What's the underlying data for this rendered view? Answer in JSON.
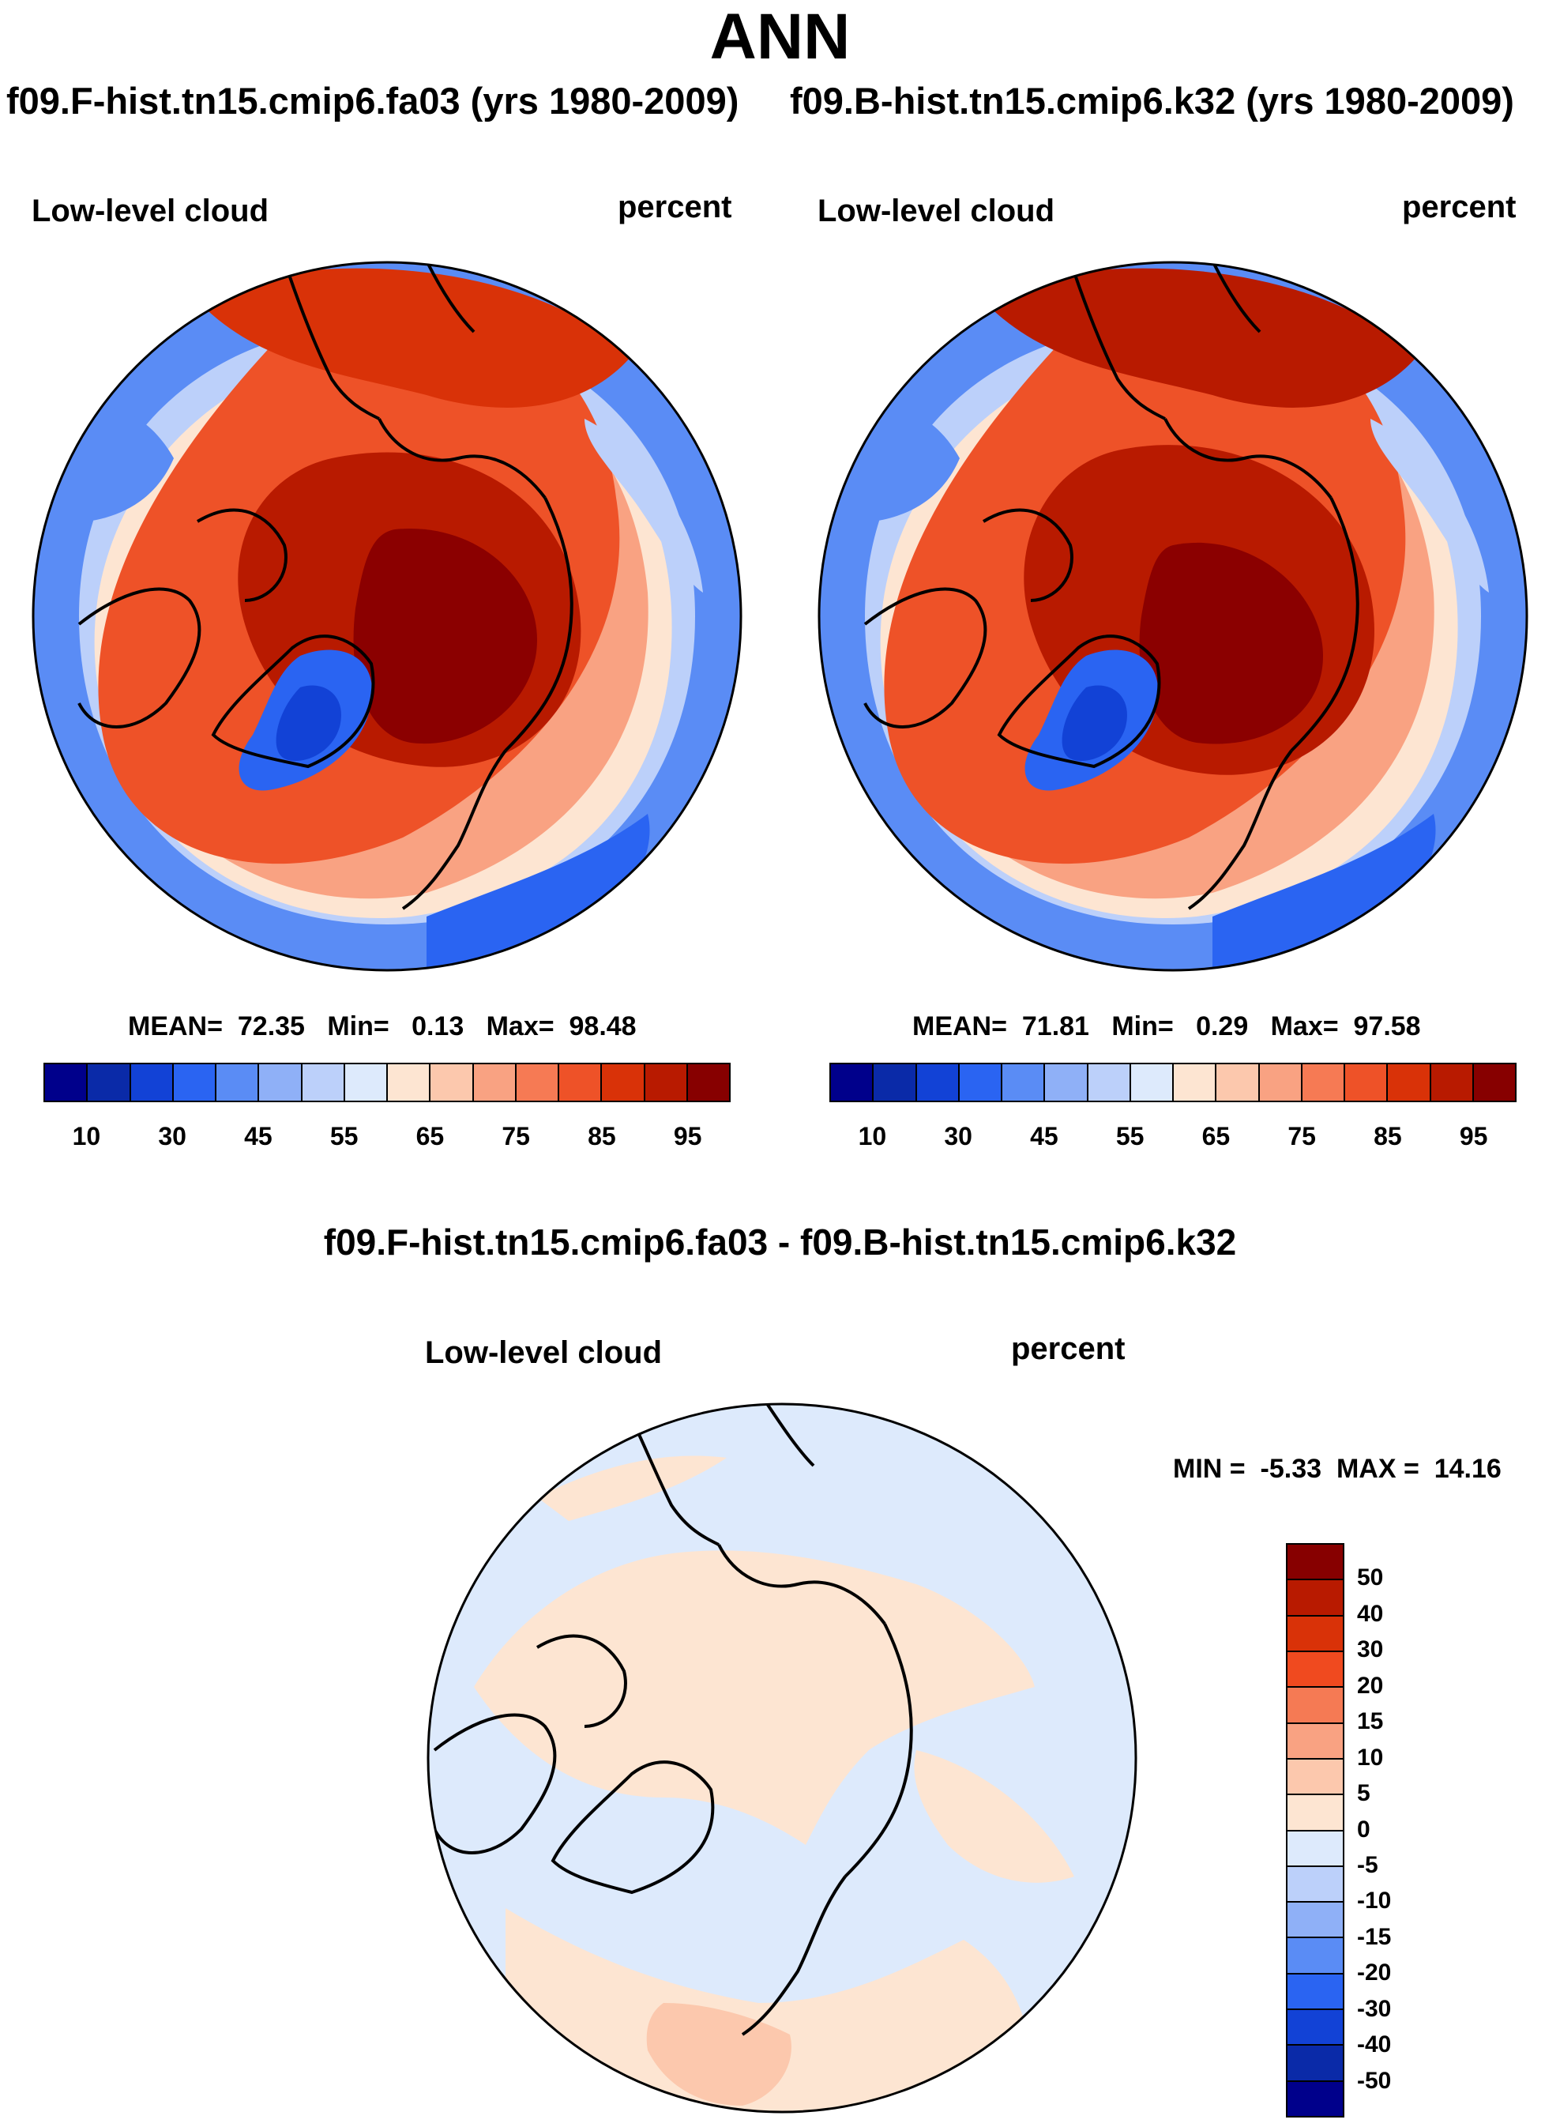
{
  "header": {
    "season": "ANN",
    "case1_label": "f09.F-hist.tn15.cmip6.fa03 (yrs 1980-2009)",
    "case2_label": "f09.B-hist.tn15.cmip6.k32 (yrs 1980-2009)"
  },
  "panel1": {
    "variable": "Low-level cloud",
    "units": "percent",
    "mean_label": "MEAN=",
    "mean_value": "72.35",
    "min_label": "Min=",
    "min_value": "0.13",
    "max_label": "Max=",
    "max_value": "98.48"
  },
  "panel2": {
    "variable": "Low-level cloud",
    "units": "percent",
    "mean_label": "MEAN=",
    "mean_value": "71.81",
    "min_label": "Min=",
    "min_value": "0.29",
    "max_label": "Max=",
    "max_value": "97.58"
  },
  "diff": {
    "title": "f09.F-hist.tn15.cmip6.fa03 - f09.B-hist.tn15.cmip6.k32",
    "variable": "Low-level cloud",
    "units": "percent",
    "min_label": "MIN =",
    "min_value": "-5.33",
    "max_label": "MAX =",
    "max_value": "14.16"
  },
  "abs_colorbar": {
    "tick_labels": [
      "10",
      "30",
      "45",
      "55",
      "65",
      "75",
      "85",
      "95"
    ],
    "colors": [
      "#00008b",
      "#0a2aa8",
      "#1242d6",
      "#2a64f2",
      "#5a8cf5",
      "#8fb0f7",
      "#bcd0fa",
      "#ddeafc",
      "#fde5d2",
      "#fcc8ad",
      "#f9a282",
      "#f67a54",
      "#ee5228",
      "#d93208",
      "#b81a00",
      "#870000"
    ]
  },
  "diff_colorbar": {
    "tick_labels": [
      "50",
      "40",
      "30",
      "20",
      "15",
      "10",
      "5",
      "0",
      "-5",
      "-10",
      "-15",
      "-20",
      "-30",
      "-40",
      "-50"
    ],
    "colors": [
      "#870000",
      "#b81a00",
      "#d93208",
      "#f04a1f",
      "#f57a54",
      "#f9a282",
      "#fcc8ad",
      "#fde5d2",
      "#ddeafc",
      "#bcd0fa",
      "#8fb0f7",
      "#5a8cf5",
      "#2a64f2",
      "#1242d6",
      "#0a2aa8",
      "#00008b"
    ]
  },
  "map_colors": {
    "deep_red": "#8b0000",
    "dark_red": "#b81a00",
    "red": "#d93208",
    "orange_red": "#ee5228",
    "orange": "#f67a54",
    "salmon": "#f9a282",
    "peach": "#fcc8ad",
    "light_peach": "#fde5d2",
    "pale_blue": "#ddeafc",
    "light_blue": "#bcd0fa",
    "blue": "#8fb0f7",
    "mid_blue": "#5a8cf5",
    "strong_blue": "#2a64f2",
    "dark_blue": "#1242d6",
    "navy": "#00008b"
  }
}
